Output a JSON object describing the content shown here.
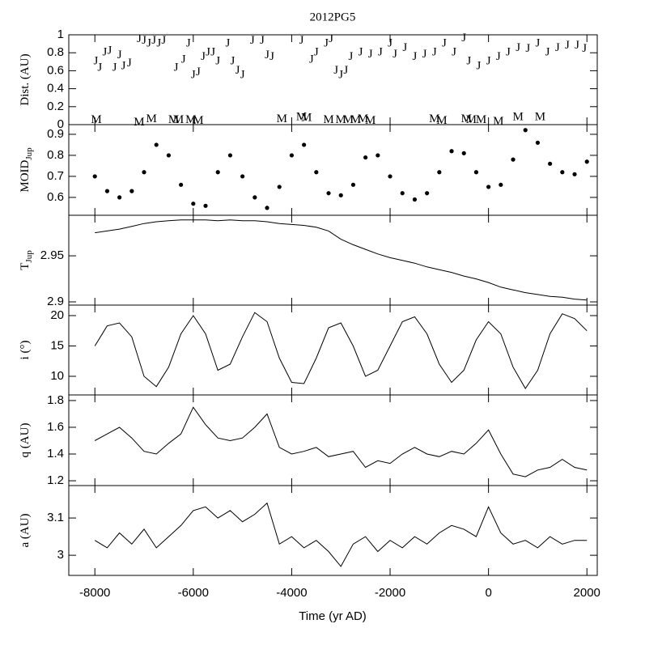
{
  "chart_data": [
    {
      "type": "scatter",
      "title": "2012PG5",
      "y_label": "Dist. (AU)",
      "marker": "text",
      "color": "#000000",
      "xlim": [
        -8530,
        2210
      ],
      "xticks": [
        -8000,
        -6000,
        -4000,
        -2000,
        0,
        2000
      ],
      "ylim": [
        0,
        1
      ],
      "yticks": [
        0,
        0.2,
        0.4,
        0.6,
        0.8,
        1
      ],
      "series": [
        {
          "name": "J",
          "x": [
            -7980,
            -7900,
            -7800,
            -7700,
            -7600,
            -7500,
            -7420,
            -7300,
            -7100,
            -7000,
            -6900,
            -6800,
            -6700,
            -6600,
            -6350,
            -6200,
            -6100,
            -6000,
            -5900,
            -5800,
            -5700,
            -5600,
            -5500,
            -5300,
            -5200,
            -5100,
            -5000,
            -4800,
            -4600,
            -4500,
            -4400,
            -3800,
            -3600,
            -3500,
            -3300,
            -3200,
            -3100,
            -3000,
            -2900,
            -2800,
            -2600,
            -2400,
            -2200,
            -2000,
            -1900,
            -1700,
            -1500,
            -1300,
            -1100,
            -900,
            -700,
            -500,
            -400,
            -200,
            0,
            200,
            400,
            600,
            800,
            1000,
            1200,
            1400,
            1600,
            1800,
            1950
          ],
          "values": [
            0.7,
            0.63,
            0.8,
            0.82,
            0.63,
            0.77,
            0.65,
            0.68,
            0.95,
            0.93,
            0.9,
            0.93,
            0.9,
            0.93,
            0.63,
            0.72,
            0.9,
            0.55,
            0.58,
            0.75,
            0.8,
            0.8,
            0.7,
            0.9,
            0.7,
            0.6,
            0.55,
            0.93,
            0.93,
            0.77,
            0.75,
            0.93,
            0.72,
            0.8,
            0.9,
            0.95,
            0.6,
            0.55,
            0.6,
            0.75,
            0.8,
            0.78,
            0.8,
            0.9,
            0.78,
            0.85,
            0.75,
            0.78,
            0.8,
            0.9,
            0.8,
            0.96,
            0.7,
            0.65,
            0.7,
            0.75,
            0.8,
            0.85,
            0.84,
            0.9,
            0.8,
            0.85,
            0.88,
            0.88,
            0.84
          ]
        },
        {
          "name": "M",
          "x": [
            -7970,
            -7100,
            -6850,
            -6400,
            -6300,
            -6050,
            -5900,
            -4200,
            -3800,
            -3700,
            -3250,
            -3000,
            -2850,
            -2700,
            -2550,
            -2400,
            -1100,
            -950,
            -450,
            -350,
            -150,
            200,
            600,
            1050
          ],
          "values": [
            0.05,
            0.02,
            0.06,
            0.05,
            0.05,
            0.05,
            0.04,
            0.06,
            0.08,
            0.07,
            0.05,
            0.05,
            0.05,
            0.05,
            0.06,
            0.04,
            0.06,
            0.04,
            0.06,
            0.05,
            0.05,
            0.03,
            0.08,
            0.08
          ]
        }
      ]
    },
    {
      "type": "scatter",
      "y_label": "MOID",
      "y_label_sub": "Jup",
      "color": "#000000",
      "xlim": [
        -8530,
        2210
      ],
      "xticks": [
        -8000,
        -6000,
        -4000,
        -2000,
        0,
        2000
      ],
      "ylim": [
        0.515,
        0.946
      ],
      "yticks": [
        0.6,
        0.7,
        0.8,
        0.9
      ],
      "x": [
        -8000,
        -7750,
        -7500,
        -7250,
        -7000,
        -6750,
        -6500,
        -6250,
        -6000,
        -5750,
        -5500,
        -5250,
        -5000,
        -4750,
        -4500,
        -4250,
        -4000,
        -3750,
        -3500,
        -3250,
        -3000,
        -2750,
        -2500,
        -2250,
        -2000,
        -1750,
        -1500,
        -1250,
        -1000,
        -750,
        -500,
        -250,
        0,
        250,
        500,
        750,
        1000,
        1250,
        1500,
        1750,
        2000
      ],
      "values": [
        0.7,
        0.63,
        0.6,
        0.63,
        0.72,
        0.85,
        0.8,
        0.66,
        0.57,
        0.56,
        0.72,
        0.8,
        0.7,
        0.6,
        0.55,
        0.65,
        0.8,
        0.85,
        0.72,
        0.62,
        0.61,
        0.66,
        0.79,
        0.8,
        0.7,
        0.62,
        0.59,
        0.62,
        0.72,
        0.82,
        0.81,
        0.72,
        0.65,
        0.66,
        0.78,
        0.92,
        0.86,
        0.76,
        0.72,
        0.71,
        0.77
      ]
    },
    {
      "type": "line",
      "y_label": "T",
      "y_label_sub": "Jup",
      "color": "#000000",
      "xlim": [
        -8530,
        2210
      ],
      "xticks": [
        -8000,
        -6000,
        -4000,
        -2000,
        0,
        2000
      ],
      "ylim": [
        2.8965,
        2.994
      ],
      "yticks": [
        2.9,
        2.95
      ],
      "x": [
        -8000,
        -7750,
        -7500,
        -7250,
        -7000,
        -6750,
        -6500,
        -6250,
        -6000,
        -5750,
        -5500,
        -5250,
        -5000,
        -4750,
        -4500,
        -4250,
        -4000,
        -3750,
        -3500,
        -3250,
        -3000,
        -2750,
        -2500,
        -2250,
        -2000,
        -1750,
        -1500,
        -1250,
        -1000,
        -750,
        -500,
        -250,
        0,
        250,
        500,
        750,
        1000,
        1250,
        1500,
        1750,
        2000
      ],
      "values": [
        2.975,
        2.977,
        2.979,
        2.982,
        2.985,
        2.987,
        2.988,
        2.989,
        2.989,
        2.989,
        2.988,
        2.989,
        2.988,
        2.988,
        2.987,
        2.985,
        2.984,
        2.983,
        2.981,
        2.977,
        2.968,
        2.962,
        2.957,
        2.952,
        2.948,
        2.945,
        2.942,
        2.938,
        2.935,
        2.932,
        2.928,
        2.925,
        2.921,
        2.916,
        2.913,
        2.91,
        2.908,
        2.906,
        2.905,
        2.903,
        2.902
      ]
    },
    {
      "type": "line",
      "y_label": "i (°)",
      "color": "#000000",
      "xlim": [
        -8530,
        2210
      ],
      "xticks": [
        -8000,
        -6000,
        -4000,
        -2000,
        0,
        2000
      ],
      "ylim": [
        6.93,
        21.73
      ],
      "yticks": [
        10,
        15,
        20
      ],
      "x": [
        -8000,
        -7750,
        -7500,
        -7250,
        -7000,
        -6750,
        -6500,
        -6250,
        -6000,
        -5750,
        -5500,
        -5250,
        -5000,
        -4750,
        -4500,
        -4250,
        -4000,
        -3750,
        -3500,
        -3250,
        -3000,
        -2750,
        -2500,
        -2250,
        -2000,
        -1750,
        -1500,
        -1250,
        -1000,
        -750,
        -500,
        -250,
        0,
        250,
        500,
        750,
        1000,
        1250,
        1500,
        1750,
        2000
      ],
      "values": [
        15,
        18.3,
        18.8,
        16.5,
        10,
        8.3,
        11.5,
        17,
        20,
        17,
        11,
        12,
        16.5,
        20.5,
        19,
        13,
        9,
        8.8,
        13,
        18,
        18.8,
        15,
        10,
        11,
        15,
        19,
        19.8,
        17,
        12,
        9,
        11,
        16,
        19,
        17,
        11.5,
        8,
        11,
        17,
        20.3,
        19.5,
        17.5
      ]
    },
    {
      "type": "line",
      "y_label": "q (AU)",
      "color": "#000000",
      "xlim": [
        -8530,
        2210
      ],
      "xticks": [
        -8000,
        -6000,
        -4000,
        -2000,
        0,
        2000
      ],
      "ylim": [
        1.164,
        1.842
      ],
      "yticks": [
        1.2,
        1.4,
        1.6,
        1.8
      ],
      "x": [
        -8000,
        -7750,
        -7500,
        -7250,
        -7000,
        -6750,
        -6500,
        -6250,
        -6000,
        -5750,
        -5500,
        -5250,
        -5000,
        -4750,
        -4500,
        -4250,
        -4000,
        -3750,
        -3500,
        -3250,
        -3000,
        -2750,
        -2500,
        -2250,
        -2000,
        -1750,
        -1500,
        -1250,
        -1000,
        -750,
        -500,
        -250,
        0,
        250,
        500,
        750,
        1000,
        1250,
        1500,
        1750,
        2000
      ],
      "values": [
        1.5,
        1.55,
        1.6,
        1.52,
        1.42,
        1.4,
        1.48,
        1.55,
        1.75,
        1.62,
        1.52,
        1.5,
        1.52,
        1.6,
        1.7,
        1.45,
        1.4,
        1.42,
        1.45,
        1.38,
        1.4,
        1.42,
        1.3,
        1.35,
        1.33,
        1.4,
        1.45,
        1.4,
        1.38,
        1.42,
        1.4,
        1.48,
        1.58,
        1.4,
        1.25,
        1.23,
        1.28,
        1.3,
        1.36,
        1.3,
        1.28
      ]
    },
    {
      "type": "line",
      "y_label": "a (AU)",
      "x_label": "Time (yr AD)",
      "color": "#000000",
      "xlim": [
        -8530,
        2210
      ],
      "xticks": [
        -8000,
        -6000,
        -4000,
        -2000,
        0,
        2000
      ],
      "ylim": [
        2.946,
        3.187
      ],
      "yticks": [
        3,
        3.1
      ],
      "x": [
        -8000,
        -7750,
        -7500,
        -7250,
        -7000,
        -6750,
        -6500,
        -6250,
        -6000,
        -5750,
        -5500,
        -5250,
        -5000,
        -4750,
        -4500,
        -4250,
        -4000,
        -3750,
        -3500,
        -3250,
        -3000,
        -2750,
        -2500,
        -2250,
        -2000,
        -1750,
        -1500,
        -1250,
        -1000,
        -750,
        -500,
        -250,
        0,
        250,
        500,
        750,
        1000,
        1250,
        1500,
        1750,
        2000
      ],
      "values": [
        3.04,
        3.02,
        3.06,
        3.03,
        3.07,
        3.02,
        3.05,
        3.08,
        3.12,
        3.13,
        3.1,
        3.12,
        3.09,
        3.11,
        3.14,
        3.03,
        3.05,
        3.02,
        3.04,
        3.01,
        2.97,
        3.03,
        3.05,
        3.01,
        3.04,
        3.02,
        3.05,
        3.03,
        3.06,
        3.08,
        3.07,
        3.05,
        3.13,
        3.06,
        3.03,
        3.04,
        3.02,
        3.05,
        3.03,
        3.04,
        3.04
      ]
    }
  ]
}
